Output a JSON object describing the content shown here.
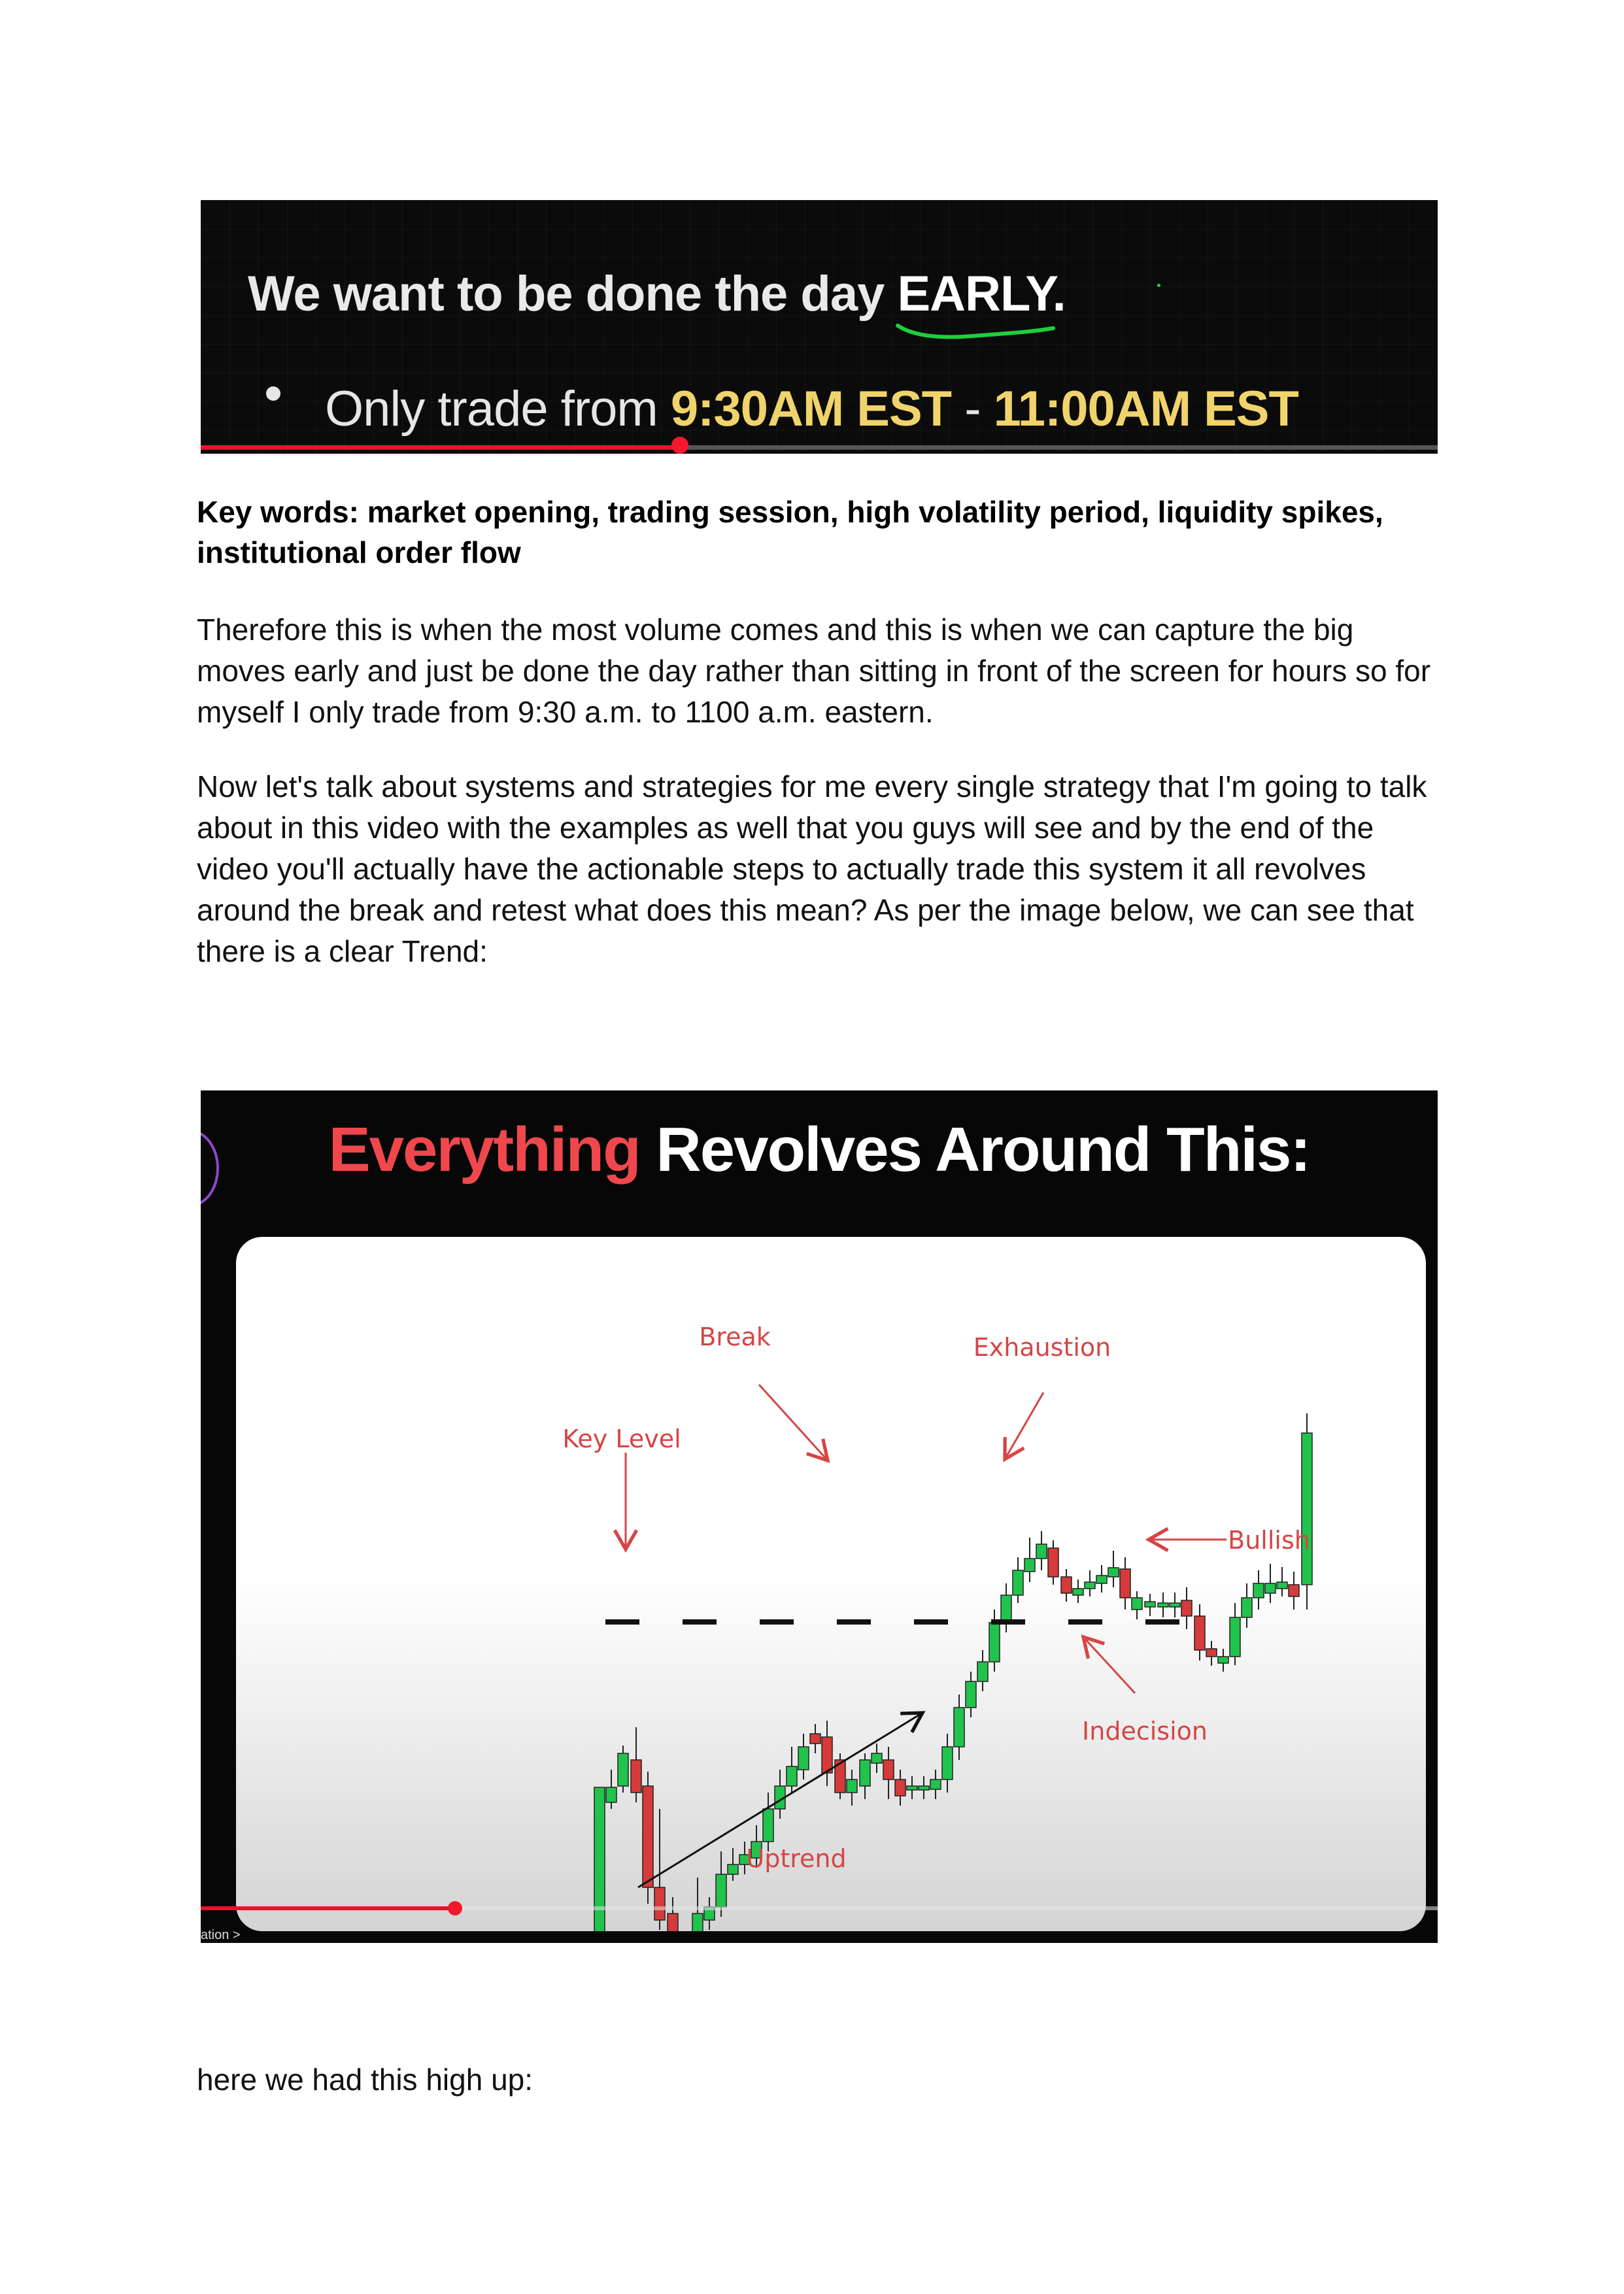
{
  "slide1": {
    "line1_text": "We want to be done the day ",
    "line1_emphasis": "EARLY.",
    "bullet_prefix": "Only trade from ",
    "time_start": "9:30AM EST",
    "time_separator": " - ",
    "time_end": "11:00AM EST"
  },
  "keywords": "Key words: market opening, trading session, high volatility period, liquidity spikes, institutional order flow",
  "paragraphs": {
    "p1": "Therefore this is when the most volume comes and this is when we can capture the big moves early and just be done the day rather than sitting in front of the screen for hours so for myself I only trade from 9:30 a.m. to 1100 a.m. eastern.",
    "p2": "Now let's talk about systems and strategies for me every single strategy that I'm going to talk about in this video with the examples as well that you guys will see and by the end of the video you'll actually have the actionable steps to actually trade this system it all revolves around the break and retest what does this mean? As per the image below, we can see that there is a clear Trend:",
    "p3": "here we had this high up:"
  },
  "slide2": {
    "title_highlight": "Everything",
    "title_rest": " Revolves Around This:",
    "caption": "ation >",
    "labels": {
      "key_level": "Key Level",
      "break": "Break",
      "exhaustion": "Exhaustion",
      "bullish": "Bullish",
      "indecision": "Indecision",
      "uptrend": "Uptrend"
    }
  },
  "colors": {
    "bull": "#22c34d",
    "bear": "#d63a3a",
    "annotation": "#d64545",
    "progress": "#e8122c",
    "time_highlight": "#f0d46b"
  },
  "chart_data": {
    "type": "candlestick",
    "series": [
      {
        "open": 0,
        "close": 0,
        "high": 0,
        "low": 0
      }
    ],
    "key_level": "dashed horizontal line",
    "annotations": [
      "Key Level",
      "Break",
      "Exhaustion",
      "Bullish",
      "Indecision",
      "Uptrend"
    ]
  }
}
